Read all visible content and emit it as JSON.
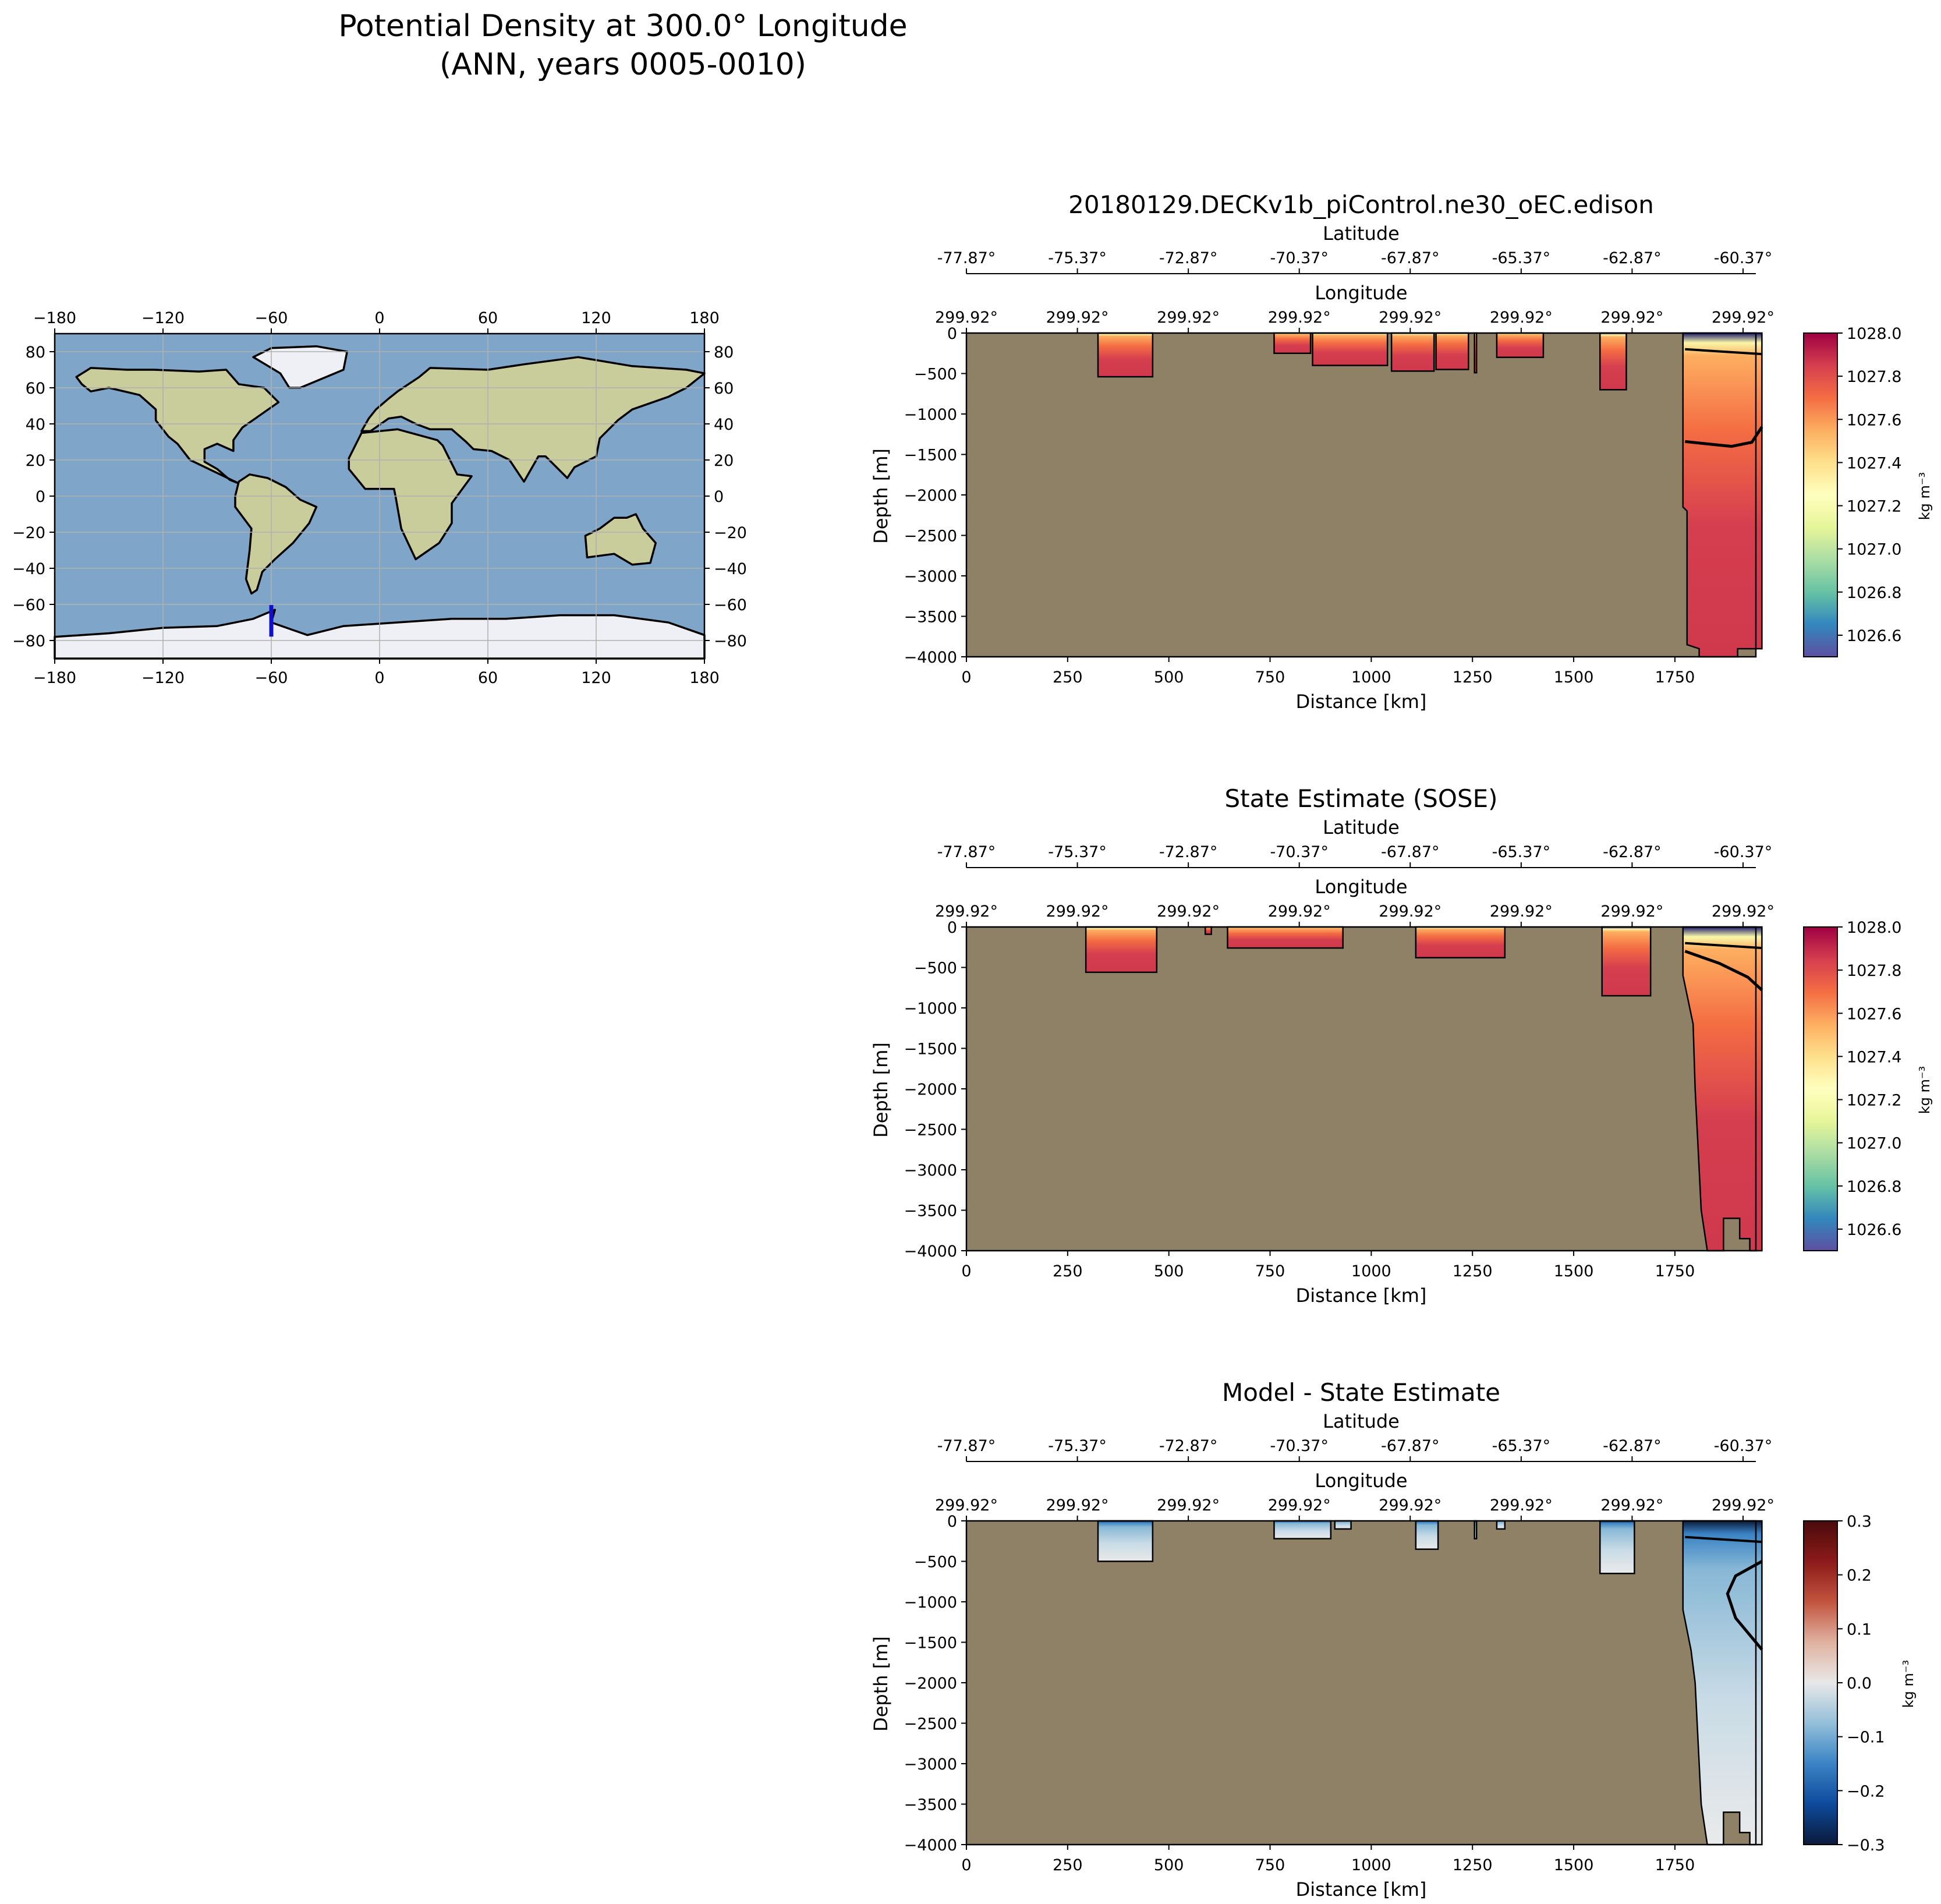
{
  "figure": {
    "title_line1": "Potential Density at 300.0° Longitude",
    "title_line2": "(ANN, years 0005-0010)"
  },
  "map": {
    "x_ticks": [
      "−180",
      "−120",
      "−60",
      "0",
      "60",
      "120",
      "180"
    ],
    "y_ticks_left": [
      "80",
      "60",
      "40",
      "20",
      "0",
      "−20",
      "−40",
      "−60",
      "−80"
    ],
    "y_ticks_right": [
      "80",
      "60",
      "40",
      "20",
      "0",
      "−20",
      "−40",
      "−60",
      "−80"
    ],
    "transect_color": "#1010cc",
    "ocean_color": "#7fa6c9",
    "land_color": "#c9cd9b",
    "ice_color": "#eef0f5"
  },
  "colors": {
    "land_fill": "#8e8166",
    "density_cmap": [
      "#5e4fa2",
      "#3288bd",
      "#66c2a5",
      "#abdda4",
      "#e6f598",
      "#ffffbf",
      "#fee08b",
      "#fdae61",
      "#f46d43",
      "#d53e4f",
      "#9e0142"
    ],
    "diff_cmap": [
      "#0b1a3a",
      "#0d4a9c",
      "#3a83c4",
      "#93bfd9",
      "#e8e8e8",
      "#e0b2a0",
      "#c2543e",
      "#8c1a1a",
      "#4a0b0b"
    ]
  },
  "chart_data": [
    {
      "type": "heatmap",
      "title": "20180129.DECKv1b_piControl.ne30_oEC.edison",
      "xlabel": "Distance [km]",
      "ylabel": "Depth [m]",
      "xlim": [
        0,
        1950
      ],
      "ylim": [
        -4000,
        0
      ],
      "x_ticks": [
        "0",
        "250",
        "500",
        "750",
        "1000",
        "1250",
        "1500",
        "1750"
      ],
      "y_ticks": [
        "0",
        "−500",
        "−1000",
        "−1500",
        "−2000",
        "−2500",
        "−3000",
        "−3500",
        "−4000"
      ],
      "lat_label": "Latitude",
      "lat_ticks": [
        "-77.87°",
        "-75.37°",
        "-72.87°",
        "-70.37°",
        "-67.87°",
        "-65.37°",
        "-62.87°",
        "-60.37°"
      ],
      "lon_label": "Longitude",
      "lon_ticks": [
        "299.92°",
        "299.92°",
        "299.92°",
        "299.92°",
        "299.92°",
        "299.92°",
        "299.92°",
        "299.92°"
      ],
      "colorbar_label": "kg m⁻³",
      "colorbar_range": [
        1026.5,
        1028.0
      ],
      "colorbar_ticks": [
        "1028.0",
        "1027.8",
        "1027.6",
        "1027.4",
        "1027.2",
        "1027.0",
        "1026.8",
        "1026.6"
      ]
    },
    {
      "type": "heatmap",
      "title": "State Estimate (SOSE)",
      "xlabel": "Distance [km]",
      "ylabel": "Depth [m]",
      "xlim": [
        0,
        1950
      ],
      "ylim": [
        -4000,
        0
      ],
      "x_ticks": [
        "0",
        "250",
        "500",
        "750",
        "1000",
        "1250",
        "1500",
        "1750"
      ],
      "y_ticks": [
        "0",
        "−500",
        "−1000",
        "−1500",
        "−2000",
        "−2500",
        "−3000",
        "−3500",
        "−4000"
      ],
      "lat_label": "Latitude",
      "lat_ticks": [
        "-77.87°",
        "-75.37°",
        "-72.87°",
        "-70.37°",
        "-67.87°",
        "-65.37°",
        "-62.87°",
        "-60.37°"
      ],
      "lon_label": "Longitude",
      "lon_ticks": [
        "299.92°",
        "299.92°",
        "299.92°",
        "299.92°",
        "299.92°",
        "299.92°",
        "299.92°",
        "299.92°"
      ],
      "colorbar_label": "kg m⁻³",
      "colorbar_range": [
        1026.5,
        1028.0
      ],
      "colorbar_ticks": [
        "1028.0",
        "1027.8",
        "1027.6",
        "1027.4",
        "1027.2",
        "1027.0",
        "1026.8",
        "1026.6"
      ]
    },
    {
      "type": "heatmap",
      "title": "Model - State Estimate",
      "xlabel": "Distance [km]",
      "ylabel": "Depth [m]",
      "xlim": [
        0,
        1950
      ],
      "ylim": [
        -4000,
        0
      ],
      "x_ticks": [
        "0",
        "250",
        "500",
        "750",
        "1000",
        "1250",
        "1500",
        "1750"
      ],
      "y_ticks": [
        "0",
        "−500",
        "−1000",
        "−1500",
        "−2000",
        "−2500",
        "−3000",
        "−3500",
        "−4000"
      ],
      "lat_label": "Latitude",
      "lat_ticks": [
        "-77.87°",
        "-75.37°",
        "-72.87°",
        "-70.37°",
        "-67.87°",
        "-65.37°",
        "-62.87°",
        "-60.37°"
      ],
      "lon_label": "Longitude",
      "lon_ticks": [
        "299.92°",
        "299.92°",
        "299.92°",
        "299.92°",
        "299.92°",
        "299.92°",
        "299.92°",
        "299.92°"
      ],
      "colorbar_label": "kg m⁻³",
      "colorbar_range": [
        -0.3,
        0.3
      ],
      "colorbar_ticks": [
        "0.3",
        "0.2",
        "0.1",
        "0.0",
        "−0.1",
        "−0.2",
        "−0.3"
      ]
    }
  ]
}
